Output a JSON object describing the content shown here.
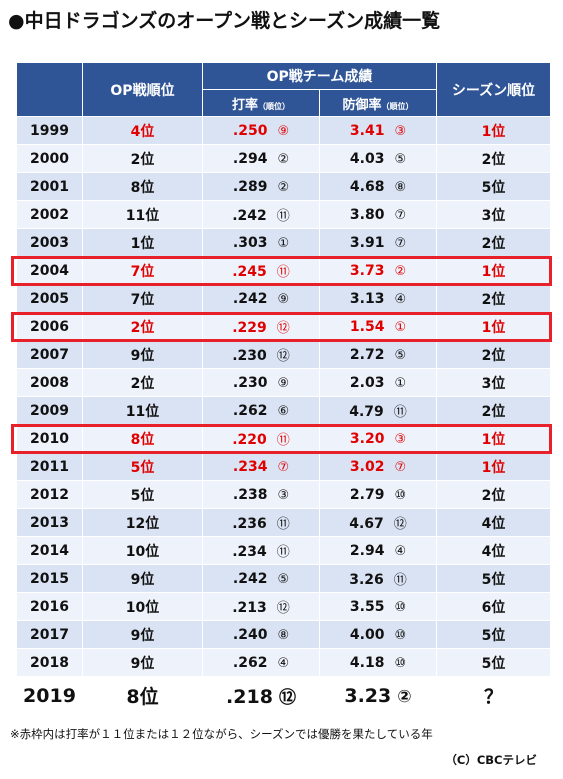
{
  "title": "●中日ドラゴンズのオープン戦とシーズン成績一覧",
  "headers": {
    "op_rank": "OP戦順位",
    "op_team": "OP戦チーム成績",
    "batting": "打率",
    "batting_sub": "（順位）",
    "era": "防御率",
    "era_sub": "（順位）",
    "season_rank": "シーズン順位"
  },
  "rows": [
    {
      "year": "1999",
      "op": "4位",
      "avg": ".250",
      "avg_rank": "⑨",
      "era": "3.41",
      "era_rank": "③",
      "season": "1位",
      "red": true
    },
    {
      "year": "2000",
      "op": "2位",
      "avg": ".294",
      "avg_rank": "②",
      "era": "4.03",
      "era_rank": "⑤",
      "season": "2位",
      "red": false
    },
    {
      "year": "2001",
      "op": "8位",
      "avg": ".289",
      "avg_rank": "②",
      "era": "4.68",
      "era_rank": "⑧",
      "season": "5位",
      "red": false
    },
    {
      "year": "2002",
      "op": "11位",
      "avg": ".242",
      "avg_rank": "⑪",
      "era": "3.80",
      "era_rank": "⑦",
      "season": "3位",
      "red": false
    },
    {
      "year": "2003",
      "op": "1位",
      "avg": ".303",
      "avg_rank": "①",
      "era": "3.91",
      "era_rank": "⑦",
      "season": "2位",
      "red": false
    },
    {
      "year": "2004",
      "op": "7位",
      "avg": ".245",
      "avg_rank": "⑪",
      "era": "3.73",
      "era_rank": "②",
      "season": "1位",
      "red": true
    },
    {
      "year": "2005",
      "op": "7位",
      "avg": ".242",
      "avg_rank": "⑨",
      "era": "3.13",
      "era_rank": "④",
      "season": "2位",
      "red": false
    },
    {
      "year": "2006",
      "op": "2位",
      "avg": ".229",
      "avg_rank": "⑫",
      "era": "1.54",
      "era_rank": "①",
      "season": "1位",
      "red": true
    },
    {
      "year": "2007",
      "op": "9位",
      "avg": ".230",
      "avg_rank": "⑫",
      "era": "2.72",
      "era_rank": "⑤",
      "season": "2位",
      "red": false
    },
    {
      "year": "2008",
      "op": "2位",
      "avg": ".230",
      "avg_rank": "⑨",
      "era": "2.03",
      "era_rank": "①",
      "season": "3位",
      "red": false
    },
    {
      "year": "2009",
      "op": "11位",
      "avg": ".262",
      "avg_rank": "⑥",
      "era": "4.79",
      "era_rank": "⑪",
      "season": "2位",
      "red": false
    },
    {
      "year": "2010",
      "op": "8位",
      "avg": ".220",
      "avg_rank": "⑪",
      "era": "3.20",
      "era_rank": "③",
      "season": "1位",
      "red": true
    },
    {
      "year": "2011",
      "op": "5位",
      "avg": ".234",
      "avg_rank": "⑦",
      "era": "3.02",
      "era_rank": "⑦",
      "season": "1位",
      "red": true
    },
    {
      "year": "2012",
      "op": "5位",
      "avg": ".238",
      "avg_rank": "③",
      "era": "2.79",
      "era_rank": "⑩",
      "season": "2位",
      "red": false
    },
    {
      "year": "2013",
      "op": "12位",
      "avg": ".236",
      "avg_rank": "⑪",
      "era": "4.67",
      "era_rank": "⑫",
      "season": "4位",
      "red": false
    },
    {
      "year": "2014",
      "op": "10位",
      "avg": ".234",
      "avg_rank": "⑪",
      "era": "2.94",
      "era_rank": "④",
      "season": "4位",
      "red": false
    },
    {
      "year": "2015",
      "op": "9位",
      "avg": ".242",
      "avg_rank": "⑤",
      "era": "3.26",
      "era_rank": "⑪",
      "season": "5位",
      "red": false
    },
    {
      "year": "2016",
      "op": "10位",
      "avg": ".213",
      "avg_rank": "⑫",
      "era": "3.55",
      "era_rank": "⑩",
      "season": "6位",
      "red": false
    },
    {
      "year": "2017",
      "op": "9位",
      "avg": ".240",
      "avg_rank": "⑧",
      "era": "4.00",
      "era_rank": "⑩",
      "season": "5位",
      "red": false
    },
    {
      "year": "2018",
      "op": "9位",
      "avg": ".262",
      "avg_rank": "④",
      "era": "4.18",
      "era_rank": "⑩",
      "season": "5位",
      "red": false
    }
  ],
  "current": {
    "year": "2019",
    "op": "8位",
    "avg": ".218",
    "avg_rank": "⑫",
    "era": "3.23",
    "era_rank": "②",
    "season": "？"
  },
  "highlighted_years": [
    "2004",
    "2006",
    "2010"
  ],
  "footnote": "※赤枠内は打率が１１位または１２位ながら、シーズンでは優勝を果たしている年",
  "credit": "（C）CBCテレビ",
  "colors": {
    "header_bg": "#2f5597",
    "row_odd": "#dae3f3",
    "row_even": "#eef2fa",
    "accent_red": "#e00000",
    "highlight_border": "#e8202a"
  }
}
